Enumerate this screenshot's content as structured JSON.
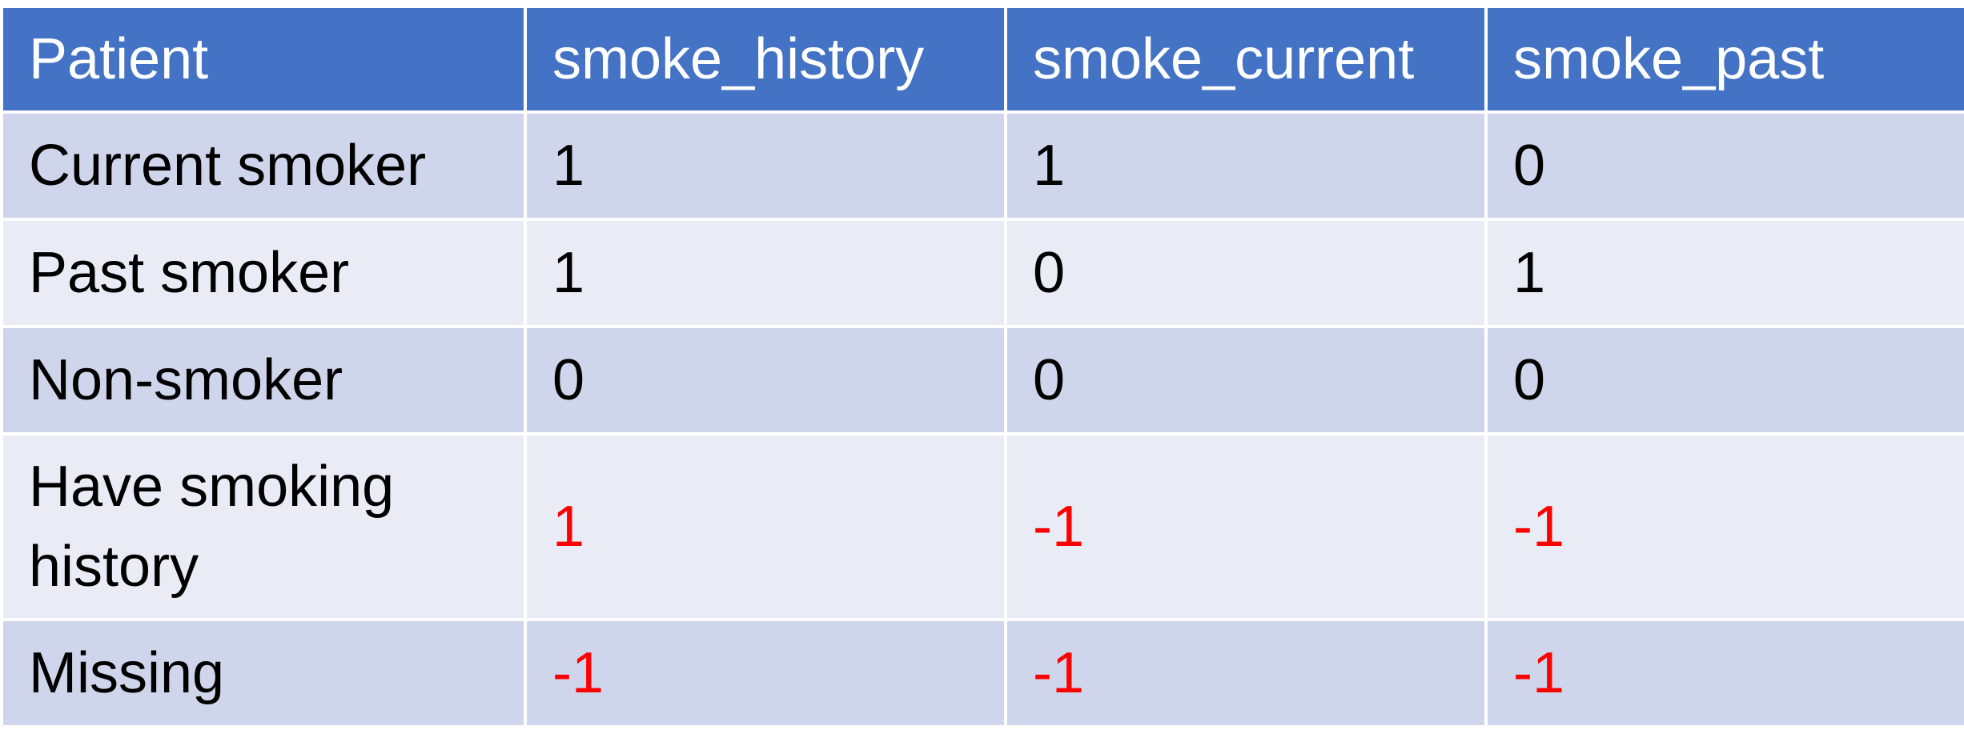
{
  "table": {
    "headers": [
      "Patient",
      "smoke_history",
      "smoke_current",
      "smoke_past"
    ],
    "rows": [
      {
        "patient": "Current smoker",
        "values": [
          "1",
          "1",
          "0"
        ]
      },
      {
        "patient": "Past smoker",
        "values": [
          "1",
          "0",
          "1"
        ]
      },
      {
        "patient": "Non-smoker",
        "values": [
          "0",
          "0",
          "0"
        ]
      },
      {
        "patient": "Have smoking history",
        "values": [
          "1",
          "-1",
          "-1"
        ]
      },
      {
        "patient": "Missing",
        "values": [
          "-1",
          "-1",
          "-1"
        ]
      }
    ]
  },
  "colors": {
    "header_bg": "#4472c4",
    "row_dark": "#cfd5ea",
    "row_light": "#e9ebf5",
    "highlight_text": "#ff0000"
  }
}
